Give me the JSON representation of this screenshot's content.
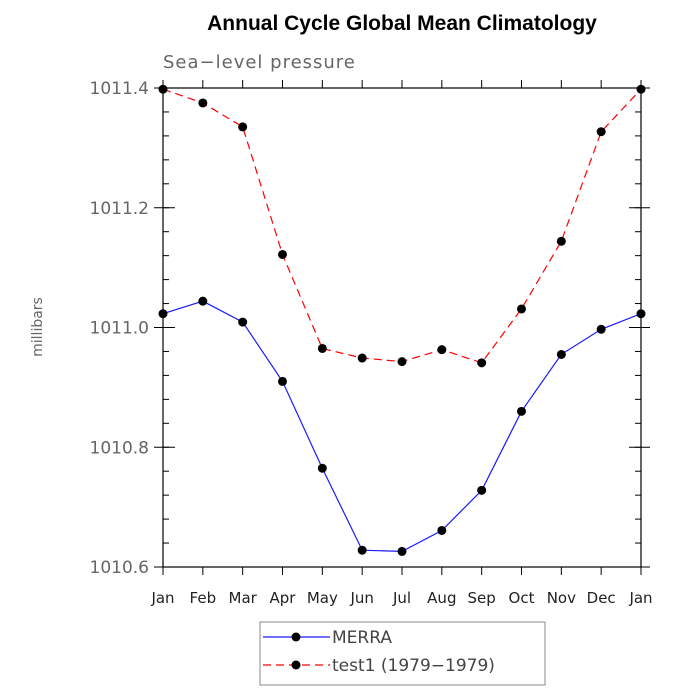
{
  "chart_data": {
    "type": "line",
    "title": "Annual Cycle Global Mean Climatology",
    "subtitle": "Sea−level pressure",
    "xlabel": "",
    "ylabel": "millibars",
    "categories": [
      "Jan",
      "Feb",
      "Mar",
      "Apr",
      "May",
      "Jun",
      "Jul",
      "Aug",
      "Sep",
      "Oct",
      "Nov",
      "Dec",
      "Jan"
    ],
    "ylim": [
      1010.6,
      1011.4
    ],
    "yticks": [
      "1010.6",
      "1010.8",
      "1011.0",
      "1011.2",
      "1011.4"
    ],
    "grid": false,
    "legend_position": "bottom",
    "series": [
      {
        "name": "MERRA",
        "color": "#1a1aff",
        "style": "solid",
        "marker": "circle",
        "values": [
          1011.023,
          1011.044,
          1011.009,
          1010.91,
          1010.765,
          1010.628,
          1010.626,
          1010.661,
          1010.728,
          1010.86,
          1010.955,
          1010.997,
          1011.023
        ]
      },
      {
        "name": "test1 (1979−1979)",
        "color": "#ff0000",
        "style": "dashed",
        "marker": "circle",
        "values": [
          1011.398,
          1011.375,
          1011.335,
          1011.122,
          1010.965,
          1010.949,
          1010.943,
          1010.963,
          1010.941,
          1011.031,
          1011.144,
          1011.327,
          1011.398
        ]
      }
    ]
  }
}
